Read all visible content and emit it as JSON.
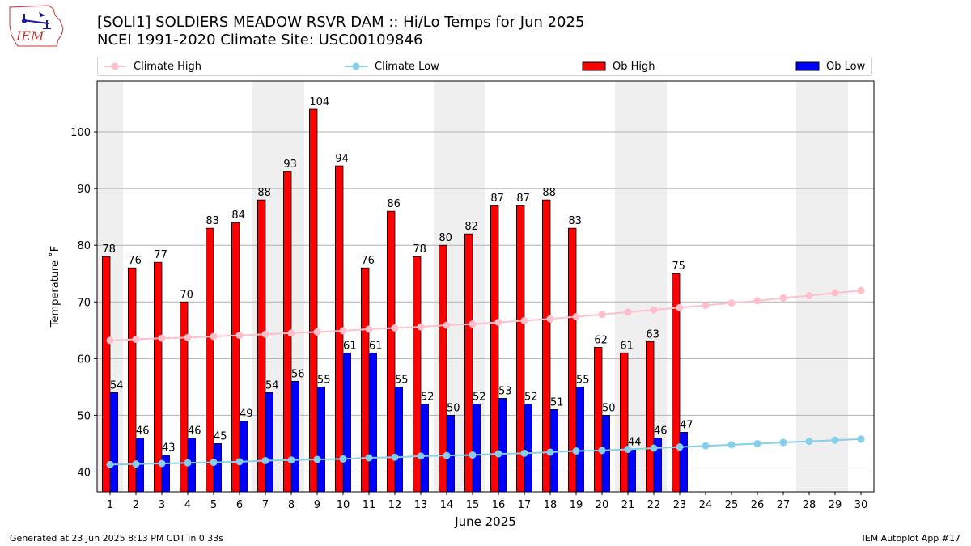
{
  "header": {
    "title_line1": "[SOLI1] SOLDIERS MEADOW RSVR DAM :: Hi/Lo Temps for Jun 2025",
    "title_line2": "NCEI 1991-2020 Climate Site: USC00109846",
    "logo_text": "IEM"
  },
  "footer": {
    "generated": "Generated at 23 Jun 2025 8:13 PM CDT in 0.33s",
    "app": "IEM Autoplot App #17"
  },
  "colors": {
    "climate_high": "#ffc0cb",
    "climate_low": "#87ceeb",
    "ob_high": "#ff0000",
    "ob_low": "#0000ff",
    "weekend_band": "#efefef",
    "grid": "#b0b0b0"
  },
  "chart_data": {
    "type": "bar",
    "xlabel": "June 2025",
    "ylabel": "Temperature ˚F",
    "ylim": [
      36.5,
      109
    ],
    "xlim": [
      0.5,
      30.5
    ],
    "yticks": [
      40,
      50,
      60,
      70,
      80,
      90,
      100
    ],
    "grid": "horizontal",
    "legend_placement": "top, above plot",
    "days": [
      1,
      2,
      3,
      4,
      5,
      6,
      7,
      8,
      9,
      10,
      11,
      12,
      13,
      14,
      15,
      16,
      17,
      18,
      19,
      20,
      21,
      22,
      23,
      24,
      25,
      26,
      27,
      28,
      29,
      30
    ],
    "weekend_days": [
      1,
      7,
      8,
      14,
      15,
      21,
      22,
      28,
      29
    ],
    "series": [
      {
        "name": "Climate High",
        "kind": "line",
        "values": [
          63.2,
          63.4,
          63.6,
          63.7,
          63.9,
          64.1,
          64.3,
          64.5,
          64.7,
          64.9,
          65.2,
          65.4,
          65.6,
          65.9,
          66.1,
          66.4,
          66.7,
          67.0,
          67.4,
          67.8,
          68.2,
          68.6,
          69.0,
          69.4,
          69.8,
          70.2,
          70.7,
          71.1,
          71.6,
          72.0
        ]
      },
      {
        "name": "Climate Low",
        "kind": "line",
        "values": [
          41.3,
          41.4,
          41.5,
          41.6,
          41.7,
          41.8,
          42.0,
          42.1,
          42.2,
          42.3,
          42.5,
          42.6,
          42.8,
          42.9,
          43.0,
          43.2,
          43.3,
          43.5,
          43.7,
          43.8,
          44.0,
          44.2,
          44.4,
          44.6,
          44.8,
          45.0,
          45.2,
          45.4,
          45.6,
          45.8
        ]
      },
      {
        "name": "Ob High",
        "kind": "bar",
        "values": [
          78,
          76,
          77,
          70,
          83,
          84,
          88,
          93,
          104,
          94,
          76,
          86,
          78,
          80,
          82,
          87,
          87,
          88,
          83,
          62,
          61,
          63,
          75
        ]
      },
      {
        "name": "Ob Low",
        "kind": "bar",
        "values": [
          54,
          46,
          43,
          46,
          45,
          49,
          54,
          56,
          55,
          61,
          61,
          55,
          52,
          50,
          52,
          53,
          52,
          51,
          55,
          50,
          44,
          46,
          47
        ]
      }
    ]
  }
}
